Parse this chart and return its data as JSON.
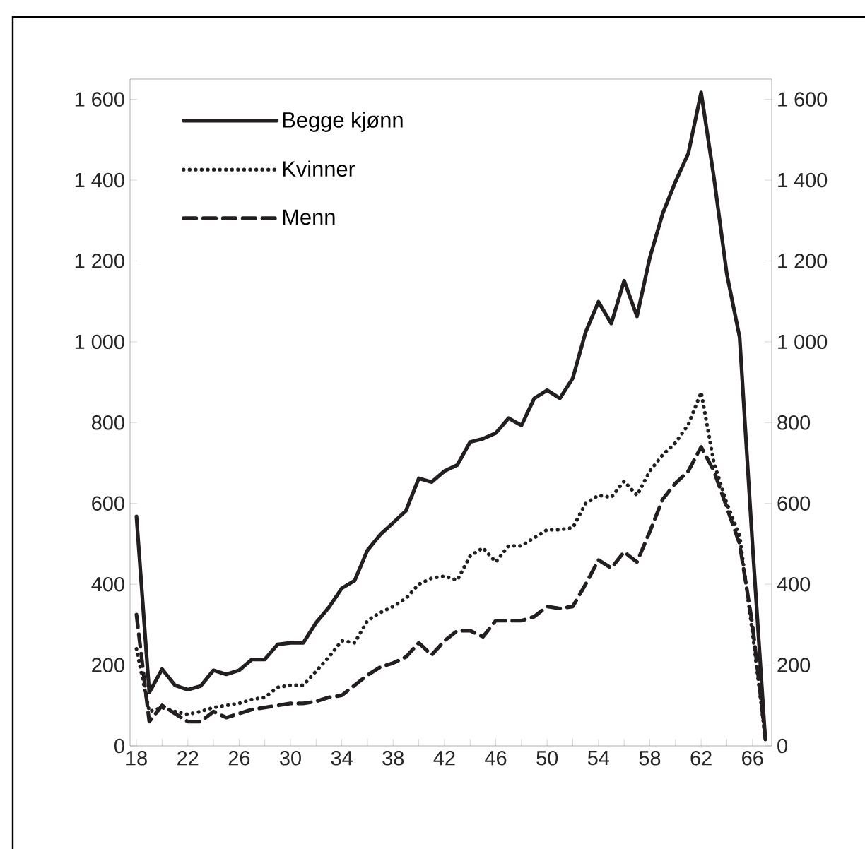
{
  "chart_data": {
    "type": "line",
    "categories": [
      "18",
      null,
      null,
      null,
      "22",
      null,
      null,
      null,
      "26",
      null,
      null,
      null,
      "30",
      null,
      null,
      null,
      "34",
      null,
      null,
      null,
      "38",
      null,
      null,
      null,
      "42",
      null,
      null,
      null,
      "46",
      null,
      null,
      null,
      "50",
      null,
      null,
      null,
      "54",
      null,
      null,
      null,
      "58",
      null,
      null,
      null,
      "62",
      null,
      null,
      null,
      "66",
      null
    ],
    "series": [
      {
        "name": "Begge kjønn",
        "color": "#231f20",
        "line_style": "solid",
        "values": [
          568,
          132,
          190,
          150,
          139,
          148,
          187,
          177,
          187,
          214,
          214,
          251,
          255,
          255,
          305,
          343,
          390,
          409,
          484,
          523,
          552,
          582,
          662,
          653,
          680,
          695,
          752,
          760,
          774,
          811,
          793,
          860,
          880,
          860,
          910,
          1024,
          1099,
          1045,
          1151,
          1063,
          1208,
          1317,
          1396,
          1466,
          1617,
          1406,
          1168,
          1011,
          500,
          16
        ]
      },
      {
        "name": "Kvinner",
        "color": "#231f20",
        "line_style": "dotted",
        "values": [
          240,
          85,
          95,
          85,
          78,
          85,
          95,
          100,
          105,
          115,
          120,
          145,
          150,
          150,
          185,
          220,
          260,
          255,
          310,
          330,
          345,
          365,
          400,
          415,
          420,
          410,
          470,
          490,
          455,
          495,
          495,
          515,
          535,
          535,
          540,
          600,
          620,
          615,
          655,
          620,
          680,
          720,
          750,
          795,
          875,
          700,
          600,
          520,
          280,
          20
        ]
      },
      {
        "name": "Menn",
        "color": "#231f20",
        "line_style": "dashed",
        "values": [
          325,
          60,
          100,
          80,
          60,
          60,
          85,
          70,
          80,
          90,
          95,
          100,
          105,
          105,
          110,
          120,
          125,
          150,
          175,
          195,
          205,
          220,
          255,
          225,
          260,
          285,
          285,
          270,
          310,
          310,
          310,
          320,
          345,
          340,
          345,
          400,
          460,
          440,
          480,
          455,
          530,
          610,
          650,
          680,
          740,
          680,
          590,
          500,
          300,
          20
        ]
      }
    ],
    "ylim": [
      0,
      1650
    ],
    "yticks": [
      0,
      200,
      400,
      600,
      800,
      {
        "value": 1000,
        "label": "1 000"
      },
      {
        "value": 1200,
        "label": "1 200"
      },
      {
        "value": 1400,
        "label": "1 400"
      },
      {
        "value": 1600,
        "label": "1 600"
      }
    ],
    "y2lim": [
      0,
      1650
    ],
    "y2ticks": [
      0,
      200,
      400,
      600,
      800,
      {
        "value": 1000,
        "label": "1 000"
      },
      {
        "value": 1200,
        "label": "1 200"
      },
      {
        "value": 1400,
        "label": "1 400"
      },
      {
        "value": 1600,
        "label": "1 600"
      }
    ],
    "grid": false,
    "legend": "top left",
    "marker": "none"
  }
}
